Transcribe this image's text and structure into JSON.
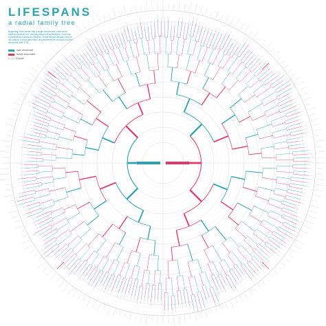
{
  "header": {
    "title": "LIFESPANS",
    "subtitle": "a radial family tree",
    "intro": "Beginning in the center with a single descendant, each set of parents branches out, reaching back nine generations. Each line represents an individual's lifespan. Those without lifespan arcs on the outside of each generation ring represent the unknown records before the year 1700."
  },
  "legend": {
    "items": [
      {
        "label": "male descendant",
        "color": "#2ba3b0"
      },
      {
        "label": "female descendant",
        "color": "#e0386a"
      }
    ],
    "scale_label": "| — | = 10 years"
  },
  "colors": {
    "male": "#2ba3b0",
    "female": "#e0386a",
    "ring": "#d8d8d8",
    "label": "#888888"
  }
}
